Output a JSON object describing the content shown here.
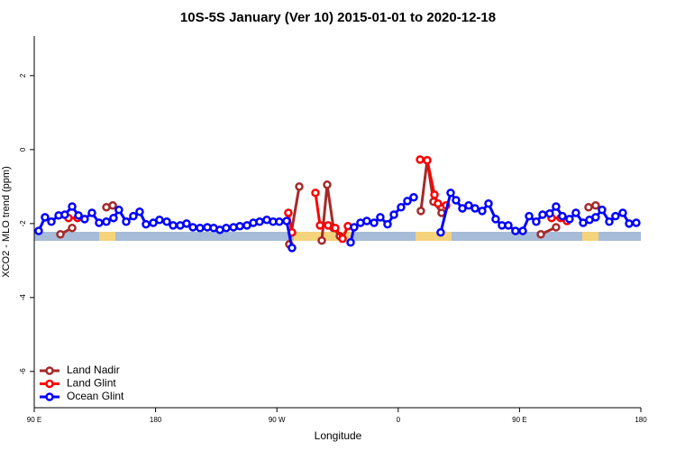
{
  "chart_data": {
    "type": "line",
    "title": "10S-5S January (Ver 10)   2015-01-01 to 2020-12-18",
    "x_label": "Longitude",
    "y_label": "XCO2 - MLO trend (ppm)",
    "xlim": [
      90,
      540
    ],
    "ylim": [
      -6.98,
      3.07
    ],
    "xticks": [
      {
        "value": 90,
        "label": "90 E"
      },
      180,
      {
        "value": 270,
        "label": "90 W"
      },
      {
        "value": 360,
        "label": "0"
      },
      {
        "value": 450,
        "label": "90 E"
      },
      {
        "value": 540,
        "label": "180"
      }
    ],
    "yticks": [
      -6,
      -4,
      -2,
      0,
      2
    ],
    "legend": "bottom-left",
    "series": [
      {
        "name": "Land Nadir",
        "color": "#a52a2a",
        "x": [
          109.4,
          118.1,
          null,
          143.5,
          148.2,
          null,
          279.2,
          286.6,
          null,
          303.3,
          307.3,
          312.0,
          316.7,
          null,
          376.8,
          381.5,
          386.2,
          392.2,
          null,
          465.8,
          477.1,
          null,
          501.2,
          506.5
        ],
        "values": [
          -2.29,
          -2.12,
          null,
          -1.56,
          -1.51,
          null,
          -2.56,
          -1.0,
          null,
          -2.46,
          -0.95,
          -2.12,
          -2.34,
          null,
          -1.66,
          -0.29,
          -1.41,
          -1.71,
          null,
          -2.29,
          -2.1,
          null,
          -1.56,
          -1.51
        ]
      },
      {
        "name": "Land Glint",
        "color": "#ff0000",
        "x": [
          115.4,
          122.1,
          null,
          278.5,
          281.2,
          null,
          298.6,
          302.0,
          308.0,
          313.3,
          318.7,
          322.7,
          null,
          376.2,
          381.5,
          386.9,
          389.5,
          395.5,
          null,
          473.8,
          480.5,
          485.2
        ],
        "values": [
          -1.85,
          -1.85,
          null,
          -1.71,
          -2.24,
          null,
          -1.17,
          -2.05,
          -2.05,
          -2.12,
          -2.41,
          -2.07,
          null,
          -0.27,
          -0.29,
          -1.22,
          -1.46,
          -1.51,
          null,
          -1.85,
          -1.85,
          -1.93
        ]
      },
      {
        "name": "Ocean Glint",
        "color": "#0000ff",
        "x": [
          93.3,
          98.0,
          102.7,
          108.1,
          112.7,
          118.1,
          122.8,
          127.4,
          132.8,
          138.1,
          143.5,
          148.8,
          152.8,
          158.2,
          163.5,
          168.2,
          172.9,
          178.3,
          182.9,
          188.3,
          193.0,
          198.3,
          203.0,
          207.7,
          213.0,
          218.4,
          223.1,
          227.7,
          232.4,
          237.8,
          242.5,
          247.8,
          252.5,
          257.2,
          262.5,
          267.2,
          271.8,
          277.2,
          281.2,
          null,
          324.7,
          327.3,
          332.0,
          336.7,
          342.1,
          346.7,
          352.1,
          356.8,
          362.1,
          366.8,
          371.5,
          null,
          391.5,
          398.9,
          402.9,
          407.6,
          412.3,
          417.0,
          422.3,
          427.0,
          432.3,
          437.0,
          441.7,
          447.0,
          452.4,
          457.1,
          462.4,
          467.1,
          472.4,
          477.1,
          481.8,
          487.1,
          491.8,
          497.2,
          501.9,
          506.5,
          511.2,
          516.6,
          521.2,
          526.6,
          531.3,
          536.6
        ],
        "values": [
          -2.2,
          -1.83,
          -1.95,
          -1.78,
          -1.76,
          -1.54,
          -1.78,
          -1.88,
          -1.71,
          -1.98,
          -1.95,
          -1.85,
          -1.63,
          -1.95,
          -1.8,
          -1.68,
          -2.02,
          -1.98,
          -1.9,
          -1.95,
          -2.05,
          -2.05,
          -2.0,
          -2.1,
          -2.12,
          -2.1,
          -2.12,
          -2.17,
          -2.12,
          -2.1,
          -2.07,
          -2.05,
          -1.98,
          -1.95,
          -1.9,
          -1.95,
          -1.95,
          -1.93,
          -2.66,
          null,
          -2.51,
          -2.1,
          -1.98,
          -1.93,
          -1.98,
          -1.83,
          -2.02,
          -1.76,
          -1.56,
          -1.39,
          -1.29,
          null,
          -2.24,
          -1.17,
          -1.37,
          -1.59,
          -1.51,
          -1.59,
          -1.66,
          -1.46,
          -1.88,
          -2.05,
          -2.05,
          -2.2,
          -2.2,
          -1.8,
          -1.95,
          -1.76,
          -1.73,
          -1.54,
          -1.8,
          -1.88,
          -1.71,
          -1.98,
          -1.9,
          -1.83,
          -1.63,
          -1.95,
          -1.8,
          -1.71,
          -2.0,
          -1.98
        ]
      }
    ]
  }
}
